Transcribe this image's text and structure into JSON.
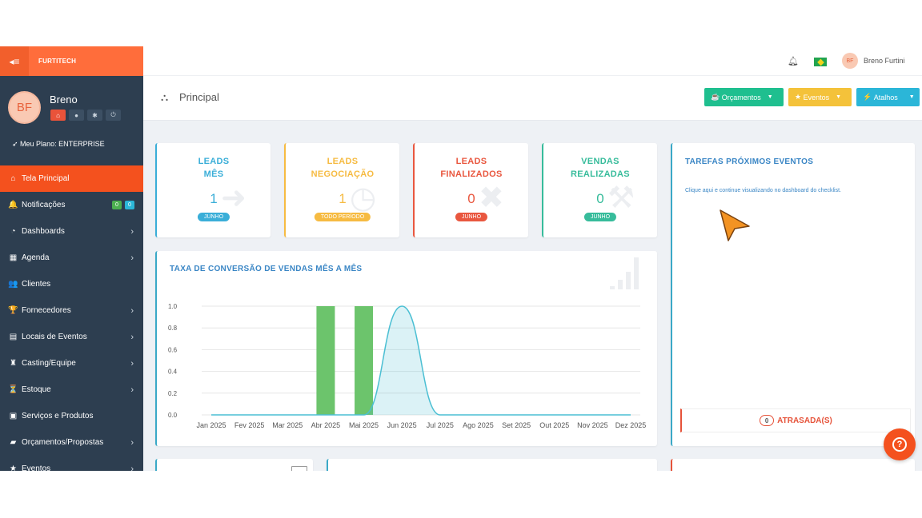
{
  "topbar": {
    "brand": "FURTITECH",
    "user_initials": "BF",
    "user_name": "Breno Furtini"
  },
  "profile": {
    "initials": "BF",
    "name": "Breno",
    "plan": "Meu Plano: ENTERPRISE"
  },
  "nav": [
    {
      "label": "Tela Principal",
      "icon": "home-icon",
      "glyph": "⌂"
    },
    {
      "label": "Notificações",
      "icon": "bell-icon",
      "glyph": "🔔",
      "badges": [
        "0",
        "0"
      ]
    },
    {
      "label": "Dashboards",
      "icon": "dashboard-icon",
      "glyph": "◔"
    },
    {
      "label": "Agenda",
      "icon": "calendar-icon",
      "glyph": "▦"
    },
    {
      "label": "Clientes",
      "icon": "users-icon",
      "glyph": "👥"
    },
    {
      "label": "Fornecedores",
      "icon": "trophy-icon",
      "glyph": "🏆"
    },
    {
      "label": "Locais de Eventos",
      "icon": "building-icon",
      "glyph": "▤"
    },
    {
      "label": "Casting/Equipe",
      "icon": "person-icon",
      "glyph": "♜"
    },
    {
      "label": "Estoque",
      "icon": "filter-icon",
      "glyph": "⏳"
    },
    {
      "label": "Serviços e Produtos",
      "icon": "list-icon",
      "glyph": "▣"
    },
    {
      "label": "Orçamentos/Propostas",
      "icon": "briefcase-icon",
      "glyph": "▰"
    },
    {
      "label": "Eventos",
      "icon": "star-icon",
      "glyph": "★"
    }
  ],
  "header": {
    "title": "Principal",
    "buttons": [
      "Orçamentos",
      "Eventos",
      "Atalhos"
    ],
    "colors": {
      "orcamentos": "#1fbf8f",
      "eventos": "#f4c23a",
      "atalhos": "#2bb6d8"
    }
  },
  "stats": [
    {
      "line1": "LEADS",
      "line2": "MÊS",
      "value": "1",
      "badge": "JUNHO",
      "color": "#3aaed8"
    },
    {
      "line1": "LEADS",
      "line2": "NEGOCIAÇÃO",
      "value": "1",
      "badge": "TODO PERÍODO",
      "color": "#f6bb42"
    },
    {
      "line1": "LEADS",
      "line2": "FINALIZADOS",
      "value": "0",
      "badge": "JUNHO",
      "color": "#e9573f"
    },
    {
      "line1": "VENDAS",
      "line2": "REALIZADAS",
      "value": "0",
      "badge": "JUNHO",
      "color": "#37bc9b"
    }
  ],
  "tasks": {
    "title": "TAREFAS PRÓXIMOS EVENTOS",
    "subtitle": "Clique aqui e continue visualizando no dashboard do checklist.",
    "overdue_count": "0",
    "overdue_label": "ATRASADA(S)"
  },
  "chart_data": {
    "type": "bar",
    "title": "TAXA DE CONVERSÃO DE VENDAS MÊS A MÊS",
    "categories": [
      "Jan 2025",
      "Fev 2025",
      "Mar 2025",
      "Abr 2025",
      "Mai 2025",
      "Jun 2025",
      "Jul 2025",
      "Ago 2025",
      "Set 2025",
      "Out 2025",
      "Nov 2025",
      "Dez 2025"
    ],
    "yticks": [
      "0.0",
      "0.2",
      "0.4",
      "0.6",
      "0.8",
      "1.0"
    ],
    "ylim": [
      0,
      1
    ],
    "grid": true,
    "series": [
      {
        "kind": "bar",
        "values": [
          0,
          0,
          0,
          1,
          1,
          0,
          0,
          0,
          0,
          0,
          0,
          0
        ],
        "color": "#6cc46c"
      },
      {
        "kind": "area",
        "values": [
          0,
          0,
          0,
          0,
          0,
          1,
          0,
          0,
          0,
          0,
          0,
          0
        ],
        "color": "#4bbfd3"
      }
    ]
  }
}
